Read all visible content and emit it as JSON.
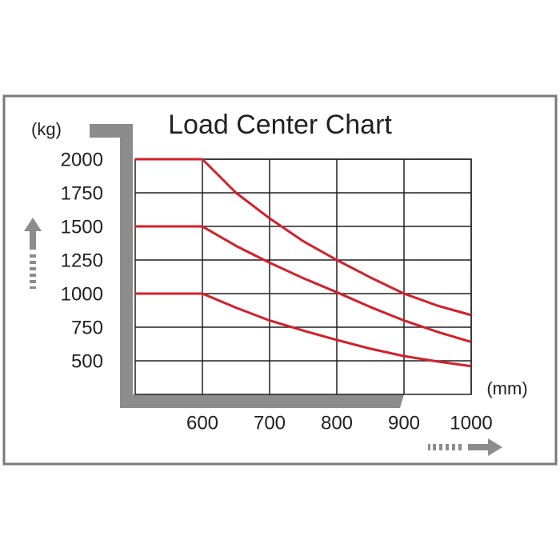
{
  "chart_data": {
    "type": "line",
    "title": "Load Center Chart",
    "y_label": "(kg)",
    "x_label": "(mm)",
    "x": [
      500,
      600,
      650,
      700,
      750,
      800,
      850,
      900,
      950,
      1000
    ],
    "series": [
      {
        "color": "#d3202a",
        "values": [
          2000,
          2000,
          1750,
          1560,
          1390,
          1250,
          1120,
          1000,
          910,
          840
        ]
      },
      {
        "color": "#d3202a",
        "values": [
          1500,
          1500,
          1355,
          1230,
          1115,
          1010,
          900,
          800,
          715,
          640
        ]
      },
      {
        "color": "#d3202a",
        "values": [
          1000,
          1000,
          895,
          800,
          725,
          655,
          590,
          535,
          495,
          460
        ]
      }
    ],
    "xlim": [
      500,
      1000
    ],
    "xticks": [
      600,
      700,
      800,
      900,
      1000
    ],
    "ylim": [
      250,
      2000
    ],
    "yticks": [
      500,
      750,
      1000,
      1250,
      1500,
      1750,
      2000
    ],
    "grid": true
  }
}
